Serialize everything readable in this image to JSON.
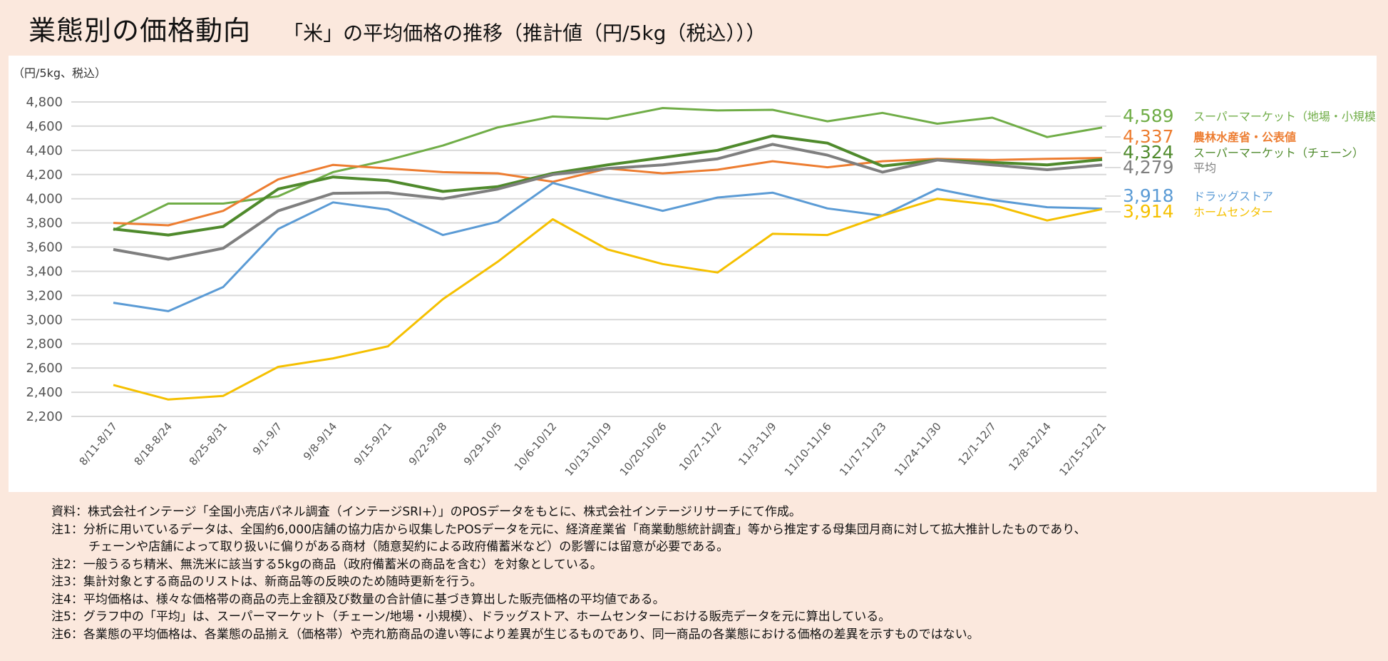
{
  "header": {
    "title": "業態別の価格動向",
    "subtitle": "「米」の平均価格の推移（推計値（円/5kg（税込）））"
  },
  "chart_data": {
    "type": "line",
    "ylabel": "（円/5kg、税込）",
    "ylim": [
      2200,
      4800
    ],
    "yticks": [
      4800,
      4600,
      4400,
      4200,
      4000,
      3800,
      3600,
      3400,
      3200,
      3000,
      2800,
      2600,
      2400,
      2200
    ],
    "ytick_labels": [
      "4,800",
      "4,600",
      "4,400",
      "4,200",
      "4,000",
      "3,800",
      "3,600",
      "3,400",
      "3,200",
      "3,000",
      "2,800",
      "2,600",
      "2,400",
      "2,200"
    ],
    "grid": true,
    "legend": "right (end-of-line labels)",
    "categories": [
      "8/11-8/17",
      "8/18-8/24",
      "8/25-8/31",
      "9/1-9/7",
      "9/8-9/14",
      "9/15-9/21",
      "9/22-9/28",
      "9/29-10/5",
      "10/6-10/12",
      "10/13-10/19",
      "10/20-10/26",
      "10/27-11/2",
      "11/3-11/9",
      "11/10-11/16",
      "11/17-11/23",
      "11/24-11/30",
      "12/1-12/7",
      "12/8-12/14",
      "12/15-12/21"
    ],
    "series": [
      {
        "name": "スーパーマーケット（地場・小規模）",
        "end_label": "4,589",
        "color": "#70ad47",
        "values": [
          3740,
          3960,
          3960,
          4020,
          4220,
          4320,
          4440,
          4590,
          4680,
          4660,
          4750,
          4730,
          4735,
          4640,
          4710,
          4620,
          4670,
          4510,
          4589
        ]
      },
      {
        "name": "農林水産省・公表値",
        "end_label": "4,337",
        "color": "#ed7d31",
        "values": [
          3800,
          3780,
          3900,
          4160,
          4280,
          4250,
          4220,
          4210,
          4140,
          4250,
          4210,
          4240,
          4310,
          4260,
          4310,
          4330,
          4320,
          4330,
          4337
        ]
      },
      {
        "name": "スーパーマーケット（チェーン）",
        "end_label": "4,324",
        "color": "#4f8a2c",
        "values": [
          3750,
          3700,
          3770,
          4080,
          4180,
          4150,
          4060,
          4100,
          4210,
          4280,
          4340,
          4400,
          4520,
          4460,
          4270,
          4320,
          4300,
          4280,
          4324
        ]
      },
      {
        "name": "平均",
        "end_label": "4,279",
        "color": "#7f7f7f",
        "values": [
          3580,
          3500,
          3590,
          3900,
          4045,
          4050,
          4000,
          4080,
          4200,
          4250,
          4280,
          4330,
          4450,
          4360,
          4220,
          4320,
          4280,
          4240,
          4279
        ]
      },
      {
        "name": "ドラッグストア",
        "end_label": "3,918",
        "color": "#5b9bd5",
        "values": [
          3140,
          3070,
          3270,
          3750,
          3970,
          3910,
          3700,
          3810,
          4130,
          4010,
          3900,
          4010,
          4050,
          3920,
          3860,
          4080,
          3990,
          3930,
          3918
        ]
      },
      {
        "name": "ホームセンター",
        "end_label": "3,914",
        "color": "#f5c000",
        "values": [
          2460,
          2340,
          2370,
          2610,
          2680,
          2780,
          3170,
          3480,
          3830,
          3580,
          3460,
          3390,
          3710,
          3700,
          3860,
          4000,
          3950,
          3820,
          3914
        ]
      }
    ]
  },
  "notes": [
    "資料：株式会社インテージ「全国小売店パネル調査（インテージSRI+）」のPOSデータをもとに、株式会社インテージリサーチにて作成。",
    "注1：分析に用いているデータは、全国約6,000店舗の協力店から収集したPOSデータを元に、経済産業省「商業動態統計調査」等から推定する母集団月商に対して拡大推計したものであり、",
    "チェーンや店舗によって取り扱いに偏りがある商材（随意契約による政府備蓄米など）の影響には留意が必要である。",
    "注2：一般うるち精米、無洗米に該当する5kgの商品（政府備蓄米の商品を含む）を対象としている。",
    "注3：集計対象とする商品のリストは、新商品等の反映のため随時更新を行う。",
    "注4：平均価格は、様々な価格帯の商品の売上金額及び数量の合計値に基づき算出した販売価格の平均値である。",
    "注5：グラフ中の「平均」は、スーパーマーケット（チェーン/地場・小規模）、ドラッグストア、ホームセンターにおける販売データを元に算出している。",
    "注6：各業態の平均価格は、各業態の品揃え（価格帯）や売れ筋商品の違い等により差異が生じるものであり、同一商品の各業態における価格の差異を示すものではない。"
  ]
}
